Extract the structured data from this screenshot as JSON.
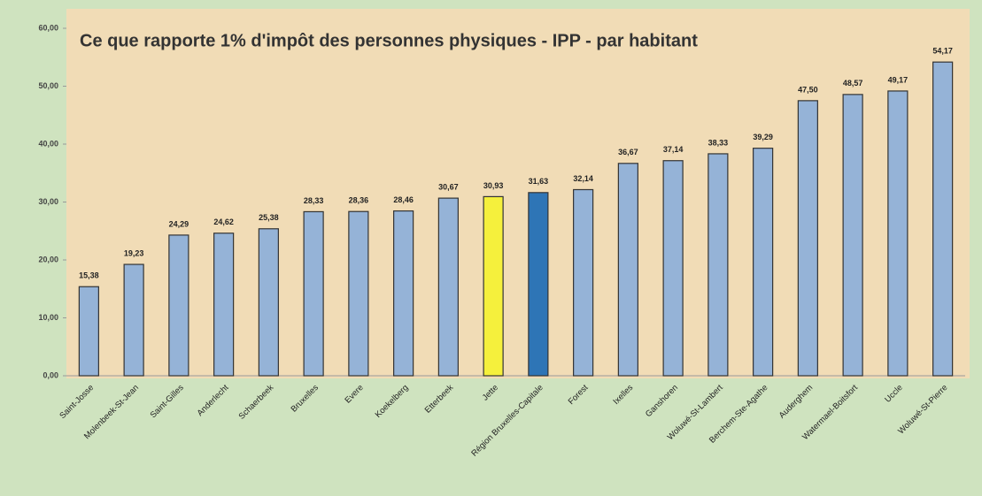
{
  "chart_data": {
    "type": "bar",
    "title": "Ce que rapporte 1% d'impôt des personnes physiques - IPP - par habitant",
    "categories": [
      "Saint-Josse",
      "Molenbeek-St-Jean",
      "Saint-Gilles",
      "Anderlecht",
      "Schaerbeek",
      "Bruxelles",
      "Evere",
      "Koekelberg",
      "Etterbeek",
      "Jette",
      "Région Bruxelles-Capitale",
      "Forest",
      "Ixelles",
      "Ganshoren",
      "Woluwé-St-Lambert",
      "Berchem-Ste-Agathe",
      "Auderghem",
      "Watermael-Boitsfort",
      "Uccle",
      "Woluwé-St-Pierre"
    ],
    "values": [
      15.38,
      19.23,
      24.29,
      24.62,
      25.38,
      28.33,
      28.36,
      28.46,
      30.67,
      30.93,
      31.63,
      32.14,
      36.67,
      37.14,
      38.33,
      39.29,
      47.5,
      48.57,
      49.17,
      54.17
    ],
    "value_labels": [
      "15,38",
      "19,23",
      "24,29",
      "24,62",
      "25,38",
      "28,33",
      "28,36",
      "28,46",
      "30,67",
      "30,93",
      "31,63",
      "32,14",
      "36,67",
      "37,14",
      "38,33",
      "39,29",
      "47,50",
      "48,57",
      "49,17",
      "54,17"
    ],
    "colors": [
      "#95b3d7",
      "#95b3d7",
      "#95b3d7",
      "#95b3d7",
      "#95b3d7",
      "#95b3d7",
      "#95b3d7",
      "#95b3d7",
      "#95b3d7",
      "#f5f03c",
      "#2e75b6",
      "#95b3d7",
      "#95b3d7",
      "#95b3d7",
      "#95b3d7",
      "#95b3d7",
      "#95b3d7",
      "#95b3d7",
      "#95b3d7",
      "#95b3d7"
    ],
    "ylim": [
      0,
      60
    ],
    "yticks": [
      {
        "value": 0,
        "label": "0,00"
      },
      {
        "value": 10,
        "label": "10,00"
      },
      {
        "value": 20,
        "label": "20,00"
      },
      {
        "value": 30,
        "label": "30,00"
      },
      {
        "value": 40,
        "label": "40,00"
      },
      {
        "value": 50,
        "label": "50,00"
      },
      {
        "value": 60,
        "label": "60,00"
      }
    ],
    "grid": false
  }
}
